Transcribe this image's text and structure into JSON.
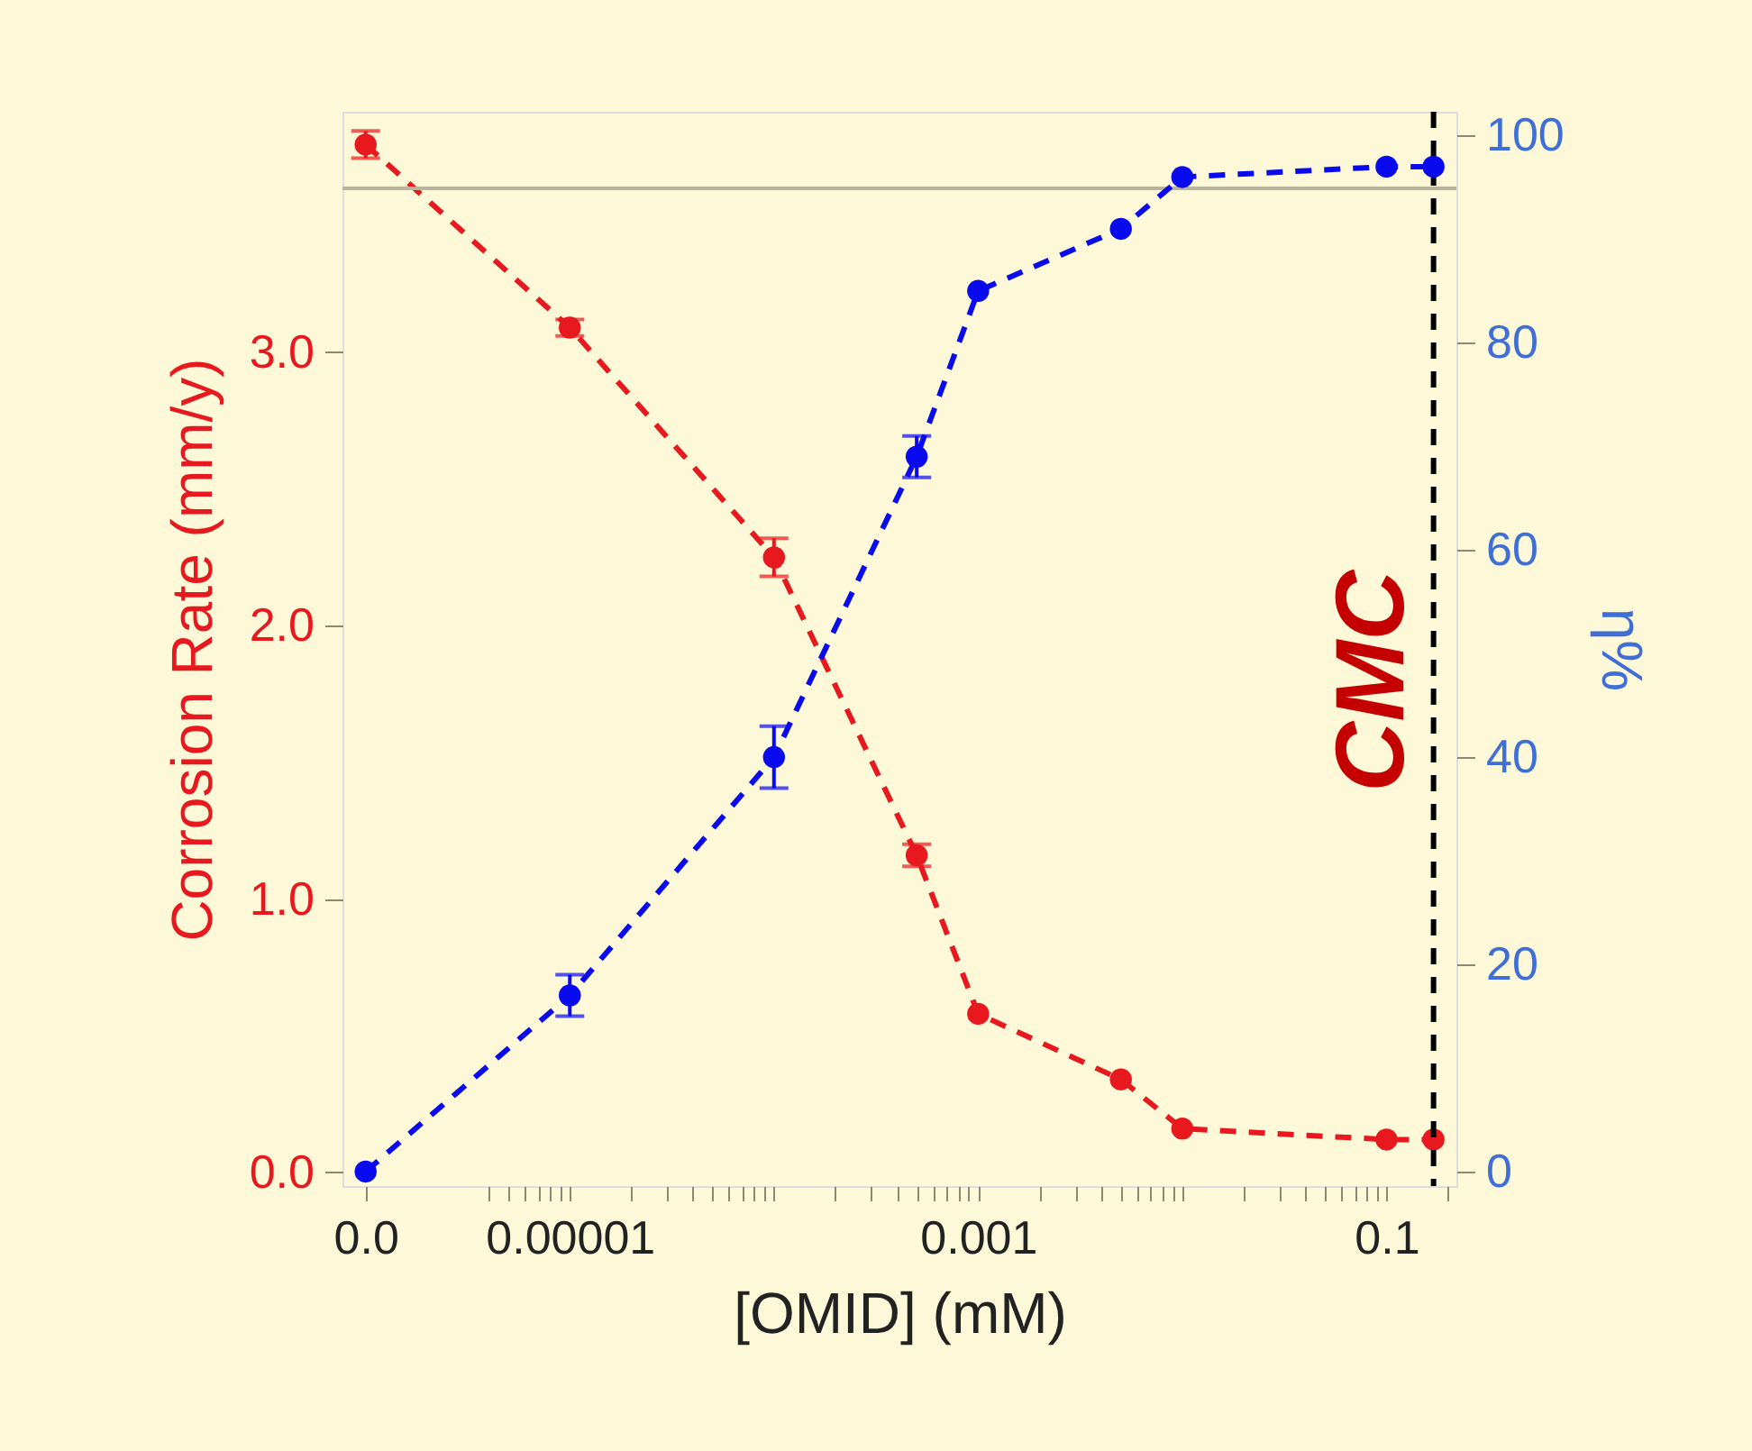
{
  "chart_data": {
    "type": "line",
    "xlabel": "[OMID] (mM)",
    "ylabel": "Corrosion Rate (mm/y)",
    "y2label": "η%",
    "log": "x",
    "grid": false,
    "marker": "circle",
    "line_style": "dashed",
    "xlim": [
      7.7e-07,
      0.22
    ],
    "ylim": [
      -0.05,
      3.88
    ],
    "y2lim": [
      -1.4,
      102.3
    ],
    "xticks": [
      {
        "value": 1e-06,
        "label": "0.0"
      },
      {
        "value": 4e-06,
        "label": null
      },
      {
        "value": 5e-06,
        "label": null
      },
      {
        "value": 6e-06,
        "label": null
      },
      {
        "value": 7e-06,
        "label": null
      },
      {
        "value": 8e-06,
        "label": null
      },
      {
        "value": 9e-06,
        "label": null
      },
      {
        "value": 1e-05,
        "label": "0.00001"
      },
      {
        "value": 2e-05,
        "label": null
      },
      {
        "value": 3e-05,
        "label": null
      },
      {
        "value": 4e-05,
        "label": null
      },
      {
        "value": 5e-05,
        "label": null
      },
      {
        "value": 6e-05,
        "label": null
      },
      {
        "value": 7e-05,
        "label": null
      },
      {
        "value": 8e-05,
        "label": null
      },
      {
        "value": 9e-05,
        "label": null
      },
      {
        "value": 0.0001,
        "label": null
      },
      {
        "value": 0.0002,
        "label": null
      },
      {
        "value": 0.0003,
        "label": null
      },
      {
        "value": 0.0004,
        "label": null
      },
      {
        "value": 0.0005,
        "label": null
      },
      {
        "value": 0.0006,
        "label": null
      },
      {
        "value": 0.0007,
        "label": null
      },
      {
        "value": 0.0008,
        "label": null
      },
      {
        "value": 0.0009,
        "label": null
      },
      {
        "value": 0.001,
        "label": "0.001"
      },
      {
        "value": 0.002,
        "label": null
      },
      {
        "value": 0.003,
        "label": null
      },
      {
        "value": 0.004,
        "label": null
      },
      {
        "value": 0.005,
        "label": null
      },
      {
        "value": 0.006,
        "label": null
      },
      {
        "value": 0.007,
        "label": null
      },
      {
        "value": 0.008,
        "label": null
      },
      {
        "value": 0.009,
        "label": null
      },
      {
        "value": 0.01,
        "label": null
      },
      {
        "value": 0.02,
        "label": null
      },
      {
        "value": 0.03,
        "label": null
      },
      {
        "value": 0.04,
        "label": null
      },
      {
        "value": 0.05,
        "label": null
      },
      {
        "value": 0.06,
        "label": null
      },
      {
        "value": 0.07,
        "label": null
      },
      {
        "value": 0.08,
        "label": null
      },
      {
        "value": 0.09,
        "label": null
      },
      {
        "value": 0.1,
        "label": "0.1"
      },
      {
        "value": 0.2,
        "label": null
      }
    ],
    "yticks": [
      {
        "value": 0,
        "label": "0.0"
      },
      {
        "value": 1,
        "label": "1.0"
      },
      {
        "value": 2,
        "label": "2.0"
      },
      {
        "value": 3,
        "label": "3.0"
      }
    ],
    "y2ticks": [
      0,
      20,
      40,
      60,
      80,
      100
    ],
    "x": [
      1e-06,
      1e-05,
      0.0001,
      0.0005,
      0.001,
      0.005,
      0.01,
      0.1,
      0.17
    ],
    "series": [
      {
        "color": "#e8191e",
        "values": [
          3.76,
          3.09,
          2.25,
          1.16,
          0.58,
          0.34,
          0.16,
          0.12,
          0.12
        ],
        "errors": [
          0.05,
          0.03,
          0.07,
          0.04,
          null,
          null,
          null,
          null,
          null
        ]
      },
      {
        "color": "#0a0aee",
        "axis": "y2",
        "values": [
          0,
          17,
          40,
          69,
          85,
          91,
          96,
          97,
          97
        ],
        "errors": [
          null,
          2,
          3,
          2,
          null,
          null,
          null,
          null,
          null
        ]
      }
    ],
    "ref_lines": [
      {
        "axis": "y",
        "value": 3.6,
        "color": "#b8b59c",
        "line_style": "solid"
      },
      {
        "axis": "x",
        "value": 0.17,
        "label": "CMC",
        "color": "#000000",
        "line_style": "dashed"
      }
    ]
  }
}
